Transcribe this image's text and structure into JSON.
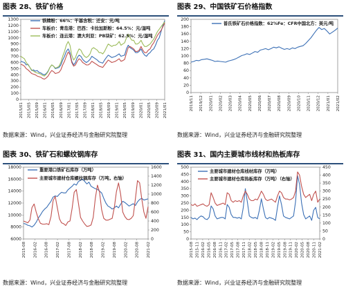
{
  "panels": [
    {
      "title": "图表 28、铁矿价格",
      "source": "数据来源：Wind，兴业证券经济与金融研究院整理"
    },
    {
      "title": "图表 29、中国铁矿石价格指数",
      "source": "数据来源：Wind，兴业证券经济与金融研究院整理"
    },
    {
      "title": "图表 30、铁矿石和螺纹钢库存",
      "source": "数据来源：Wind，兴业证券经济与金融研究院整理"
    },
    {
      "title": "图表 31、国内主要城市线材和热板库存",
      "source": "数据来源：Wind，兴业证券经济与金融研究院整理"
    }
  ],
  "chart_data": [
    {
      "type": "line",
      "ylim": [
        0,
        1300
      ],
      "yticks": [
        0,
        100,
        200,
        300,
        400,
        500,
        600,
        700,
        800,
        900,
        1000,
        1100,
        1200,
        1300
      ],
      "xticks": [
        "2015/01",
        "2015/05",
        "2015/09",
        "2016/01",
        "2016/05",
        "2016/09",
        "2017/01",
        "2017/05",
        "2017/09",
        "2018/01",
        "2018/05",
        "2018/09",
        "2019/01",
        "2019/05",
        "2019/09",
        "2020/01",
        "2020/05",
        "2020/09",
        "2021/01"
      ],
      "legend_position": "top-left",
      "series": [
        {
          "name": "铁精粉：66%：干基含税：迁安：元/吨",
          "color": "#3a6fb5",
          "values": [
            620,
            610,
            600,
            560,
            570,
            520,
            470,
            480,
            460,
            470,
            440,
            430,
            410,
            400,
            420,
            460,
            520,
            560,
            540,
            500,
            510,
            520,
            560,
            640,
            700,
            780,
            820,
            760,
            620,
            560,
            600,
            680,
            720,
            700,
            650,
            620,
            600,
            620,
            650,
            700,
            680,
            660,
            640,
            610,
            600,
            590,
            640,
            680,
            720,
            700,
            680,
            690,
            700,
            720,
            740,
            700,
            710,
            720,
            820,
            880,
            840,
            820,
            800,
            760,
            760,
            780,
            820,
            760,
            720,
            700,
            740,
            760,
            800,
            820,
            880,
            960,
            1000,
            1100,
            1200,
            1280
          ]
        },
        {
          "name": "车板价：青岛港：巴西：卡拉加斯粉：64.5%：元/湿吨",
          "color": "#c0504d",
          "values": [
            570,
            560,
            540,
            500,
            480,
            450,
            420,
            410,
            400,
            380,
            370,
            360,
            340,
            330,
            350,
            380,
            430,
            470,
            450,
            420,
            430,
            440,
            480,
            560,
            620,
            700,
            770,
            730,
            600,
            540,
            560,
            620,
            660,
            640,
            600,
            580,
            560,
            560,
            580,
            620,
            600,
            580,
            560,
            540,
            530,
            520,
            560,
            600,
            640,
            620,
            600,
            610,
            620,
            640,
            660,
            620,
            630,
            650,
            750,
            840,
            860,
            840,
            820,
            780,
            780,
            800,
            860,
            800,
            760,
            760,
            800,
            820,
            880,
            920,
            980,
            1040,
            1080,
            1120,
            1180,
            1240
          ]
        },
        {
          "name": "车板价：连云港：澳大利亚：PB块矿：62.5%：元/湿吨",
          "color": "#9bbb59",
          "values": [
            700,
            680,
            660,
            600,
            560,
            520,
            480,
            460,
            440,
            430,
            420,
            410,
            390,
            380,
            410,
            450,
            520,
            560,
            540,
            510,
            520,
            540,
            600,
            700,
            780,
            880,
            940,
            880,
            720,
            640,
            680,
            760,
            820,
            800,
            740,
            700,
            680,
            700,
            740,
            820,
            840,
            820,
            800,
            760,
            760,
            740,
            780,
            840,
            900,
            880,
            860,
            880,
            880,
            900,
            940,
            880,
            900,
            920,
            1000,
            1060,
            1000,
            960,
            960,
            900,
            900,
            920,
            960,
            900,
            860,
            860,
            880,
            900,
            940,
            980,
            1040,
            1100,
            1140,
            1180,
            1220,
            1260
          ]
        }
      ]
    },
    {
      "type": "line",
      "ylim": [
        0,
        200
      ],
      "yticks": [
        0,
        20,
        40,
        60,
        80,
        100,
        120,
        140,
        160,
        180,
        200
      ],
      "xticks": [
        "2019/11",
        "2019/12",
        "2020/01",
        "2020/02",
        "2020/03",
        "2020/04",
        "2020/05",
        "2020/06",
        "2020/07",
        "2020/08",
        "2020/09",
        "2020/10",
        "2020/11",
        "2020/12",
        "2021/01",
        "2021/02"
      ],
      "legend_position": "top-left",
      "series": [
        {
          "name": "普氏铁矿石价格指数：62%Fe：CFR中国北方：美元/吨",
          "color": "#3a6fb5",
          "values": [
            83,
            85,
            88,
            87,
            90,
            91,
            92,
            90,
            88,
            85,
            86,
            85,
            84,
            83,
            86,
            88,
            90,
            93,
            97,
            101,
            103,
            106,
            104,
            108,
            112,
            110,
            116,
            118,
            120,
            117,
            120,
            124,
            122,
            125,
            121,
            118,
            120,
            118,
            122,
            120,
            124,
            126,
            128,
            134,
            142,
            150,
            160,
            170,
            178,
            172,
            175,
            168,
            160,
            165,
            170,
            176
          ]
        }
      ]
    },
    {
      "type": "line",
      "ylim_left": [
        6000,
        18000
      ],
      "ylim_right": [
        0,
        1600
      ],
      "yticks_left": [
        6000,
        8000,
        10000,
        12000,
        14000,
        16000,
        18000
      ],
      "yticks_right": [
        0,
        200,
        400,
        600,
        800,
        1000,
        1200,
        1400,
        1600
      ],
      "xticks": [
        "2015-08",
        "2016-02",
        "2016-08",
        "2017-02",
        "2017-08",
        "2018-02",
        "2018-08",
        "2019-02",
        "2019-08",
        "2020-02",
        "2020-08",
        "2021-02"
      ],
      "legend_position": "top-left",
      "series": [
        {
          "name": "重要港口铁矿石库存（万吨）",
          "color": "#3a6fb5",
          "axis": "left",
          "values": [
            8600,
            8500,
            8300,
            8200,
            8000,
            8300,
            8800,
            9500,
            10000,
            10600,
            11000,
            11300,
            11800,
            12300,
            13000,
            13200,
            13100,
            13500,
            13800,
            13700,
            13700,
            14200,
            14500,
            14800,
            15200,
            15000,
            15600,
            15800,
            16000,
            15600,
            15200,
            15500,
            14800,
            14600,
            14400,
            14300,
            14000,
            13700,
            12800,
            12000,
            11500,
            11300,
            11000,
            11200,
            11500,
            11200,
            11800,
            12300,
            12100,
            11800,
            11500,
            11700,
            11900,
            11600,
            12200,
            12600,
            12800,
            12500,
            12600,
            12700
          ]
        },
        {
          "name": "主要城市建材仓库螺纹钢库存（万吨，右轴）",
          "color": "#c0504d",
          "axis": "right",
          "values": [
            400,
            380,
            360,
            420,
            700,
            780,
            600,
            450,
            350,
            330,
            330,
            340,
            320,
            500,
            850,
            950,
            700,
            450,
            360,
            340,
            300,
            380,
            400,
            680,
            1040,
            1100,
            800,
            480,
            400,
            330,
            280,
            290,
            310,
            480,
            900,
            1200,
            1050,
            650,
            460,
            420,
            420,
            440,
            460,
            700,
            1050,
            1250,
            1000,
            600,
            500,
            440,
            430,
            460,
            520,
            900,
            1300,
            1250,
            900,
            600,
            460,
            720
          ]
        }
      ]
    },
    {
      "type": "line",
      "ylim_left": [
        0,
        500
      ],
      "ylim_right": [
        0,
        450
      ],
      "yticks_left": [
        0,
        50,
        100,
        150,
        200,
        250,
        300,
        350,
        400,
        450,
        500
      ],
      "yticks_right": [
        0,
        50,
        100,
        150,
        200,
        250,
        300,
        350,
        400,
        450
      ],
      "xticks": [
        "2015-08",
        "2015-11",
        "2016-02",
        "2016-05",
        "2016-08",
        "2016-11",
        "2017-02",
        "2017-05",
        "2017-08",
        "2017-11",
        "2018-02",
        "2018-05",
        "2018-08",
        "2018-11",
        "2019-02",
        "2019-05",
        "2019-08",
        "2019-11",
        "2020-02",
        "2020-05",
        "2020-08",
        "2020-11",
        "2021-02"
      ],
      "legend_position": "top-left",
      "series": [
        {
          "name": "主要城市建材仓库线材库存（万吨）",
          "color": "#3a6fb5",
          "axis": "left",
          "values": [
            150,
            140,
            145,
            135,
            150,
            160,
            155,
            140,
            135,
            150,
            230,
            210,
            160,
            140,
            145,
            150,
            150,
            140,
            240,
            220,
            170,
            150,
            150,
            145,
            150,
            140,
            220,
            350,
            260,
            160,
            150,
            145,
            150,
            140,
            200,
            280,
            210,
            150,
            140,
            150,
            145,
            140,
            130,
            220,
            300,
            240,
            160,
            150,
            145,
            140,
            150,
            160,
            260,
            440,
            380,
            250,
            170,
            140,
            150,
            160,
            130,
            200,
            220,
            150,
            140
          ]
        },
        {
          "name": "主要城市建材仓库热板库存（万吨）（右轴）",
          "color": "#c0504d",
          "axis": "right",
          "values": [
            215,
            210,
            220,
            205,
            210,
            215,
            220,
            210,
            205,
            215,
            290,
            260,
            225,
            210,
            215,
            220,
            225,
            215,
            290,
            280,
            240,
            230,
            240,
            235,
            240,
            230,
            270,
            300,
            280,
            250,
            240,
            240,
            250,
            245,
            270,
            300,
            280,
            250,
            240,
            245,
            250,
            240,
            230,
            270,
            300,
            290,
            260,
            250,
            250,
            245,
            250,
            260,
            300,
            420,
            400,
            330,
            280,
            260,
            270,
            280,
            240,
            280,
            300,
            230,
            250
          ]
        }
      ]
    }
  ]
}
